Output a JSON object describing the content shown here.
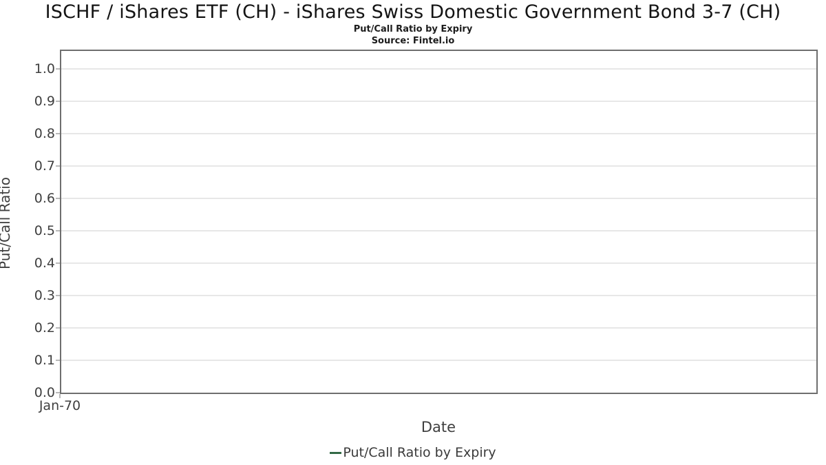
{
  "header": {
    "title": "ISCHF / iShares ETF (CH) - iShares Swiss Domestic Government Bond 3-7 (CH)",
    "subtitle": "Put/Call Ratio by Expiry",
    "source": "Source: Fintel.io"
  },
  "chart_data": {
    "type": "line",
    "title": "Put/Call Ratio by Expiry",
    "xlabel": "Date",
    "ylabel": "Put/Call Ratio",
    "ylim": [
      0.0,
      1.06
    ],
    "ytick_labels": [
      "0.0",
      "0.1",
      "0.2",
      "0.3",
      "0.4",
      "0.5",
      "0.6",
      "0.7",
      "0.8",
      "0.9",
      "1.0"
    ],
    "xtick_labels": [
      "Jan-70"
    ],
    "grid": true,
    "legend": {
      "label": "Put/Call Ratio by Expiry",
      "position": "bottom",
      "color": "#336a46"
    },
    "series": [
      {
        "name": "Put/Call Ratio by Expiry",
        "color": "#336a46",
        "x": [],
        "values": []
      }
    ]
  },
  "colors": {
    "plot_border": "#6e6e6e",
    "gridline": "#e7e7e7",
    "tick_mark": "#b9b9b9",
    "text_dark": "#1c1c1c",
    "text_gray": "#3f3f3f",
    "background": "#ffffff",
    "series_green": "#336a46"
  }
}
